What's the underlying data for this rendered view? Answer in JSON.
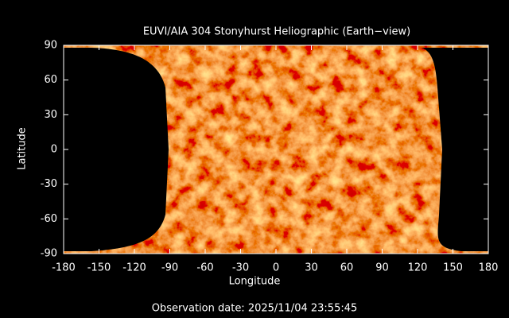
{
  "chart_data": {
    "type": "map",
    "title": "EUVI/AIA 304 Stonyhurst Heliographic (Earth−view)",
    "xlabel": "Longitude",
    "ylabel": "Latitude",
    "footer": "Observation date: 2025/11/04 23:55:45",
    "xlim": [
      -180,
      180
    ],
    "ylim": [
      -90,
      90
    ],
    "xticks": [
      -180,
      -150,
      -120,
      -90,
      -60,
      -30,
      0,
      30,
      60,
      90,
      120,
      150,
      180
    ],
    "yticks": [
      -90,
      -60,
      -30,
      0,
      30,
      60,
      90
    ]
  }
}
